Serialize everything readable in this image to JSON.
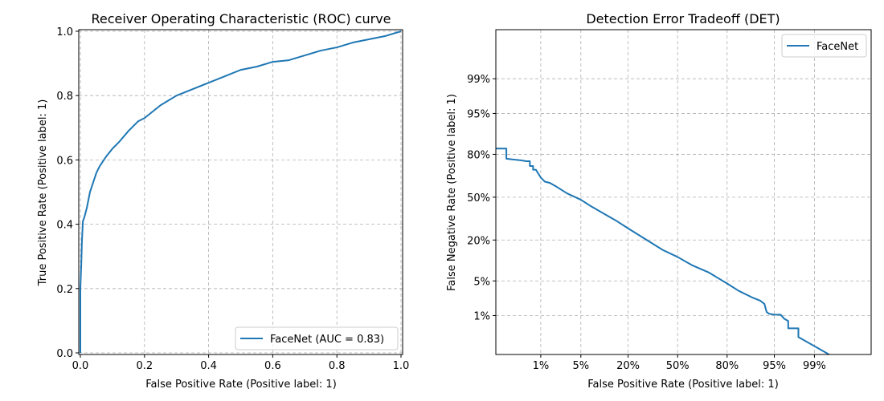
{
  "chart_data": [
    {
      "type": "line",
      "title": "Receiver Operating Characteristic (ROC) curve",
      "xlabel": "False Positive Rate (Positive label: 1)",
      "ylabel": "True Positive Rate (Positive label: 1)",
      "xlim": [
        -0.005,
        1.005
      ],
      "ylim": [
        -0.005,
        1.005
      ],
      "xticks": [
        0.0,
        0.2,
        0.4,
        0.6,
        0.8,
        1.0
      ],
      "xtick_labels": [
        "0.0",
        "0.2",
        "0.4",
        "0.6",
        "0.8",
        "1.0"
      ],
      "yticks": [
        0.0,
        0.2,
        0.4,
        0.6,
        0.8,
        1.0
      ],
      "ytick_labels": [
        "0.0",
        "0.2",
        "0.4",
        "0.6",
        "0.8",
        "1.0"
      ],
      "grid": true,
      "legend_position": "lower-right",
      "series": [
        {
          "name": "FaceNet (AUC = 0.83)",
          "color": "#1f77b4",
          "x": [
            0.0,
            0.0,
            0.003,
            0.005,
            0.008,
            0.012,
            0.02,
            0.03,
            0.04,
            0.05,
            0.06,
            0.08,
            0.1,
            0.12,
            0.15,
            0.18,
            0.2,
            0.25,
            0.3,
            0.35,
            0.4,
            0.45,
            0.5,
            0.55,
            0.6,
            0.65,
            0.7,
            0.75,
            0.8,
            0.85,
            0.9,
            0.95,
            1.0
          ],
          "y": [
            0.0,
            0.2,
            0.28,
            0.35,
            0.41,
            0.42,
            0.45,
            0.5,
            0.53,
            0.56,
            0.58,
            0.61,
            0.635,
            0.655,
            0.69,
            0.72,
            0.73,
            0.77,
            0.8,
            0.82,
            0.84,
            0.86,
            0.88,
            0.89,
            0.905,
            0.91,
            0.925,
            0.94,
            0.95,
            0.965,
            0.975,
            0.985,
            1.0
          ]
        }
      ]
    },
    {
      "type": "line",
      "title": "Detection Error Tradeoff (DET)",
      "xlabel": "False Positive Rate (Positive label: 1)",
      "ylabel": "False Negative Rate (Positive label: 1)",
      "scale": "normal-deviate",
      "xlim": [
        0.001,
        0.9995
      ],
      "ylim": [
        0.001,
        0.9995
      ],
      "xticks": [
        0.01,
        0.05,
        0.2,
        0.5,
        0.8,
        0.95,
        0.99
      ],
      "xtick_labels": [
        "1%",
        "5%",
        "20%",
        "50%",
        "80%",
        "95%",
        "99%"
      ],
      "yticks": [
        0.01,
        0.05,
        0.2,
        0.5,
        0.8,
        0.95,
        0.99
      ],
      "ytick_labels": [
        "1%",
        "5%",
        "20%",
        "50%",
        "80%",
        "95%",
        "99%"
      ],
      "grid": true,
      "legend_position": "top-right",
      "series": [
        {
          "name": "FaceNet",
          "color": "#1f77b4",
          "x": [
            0.001,
            0.0018,
            0.0018,
            0.004,
            0.005,
            0.006,
            0.006,
            0.007,
            0.007,
            0.008,
            0.01,
            0.012,
            0.015,
            0.02,
            0.03,
            0.05,
            0.07,
            0.1,
            0.15,
            0.2,
            0.3,
            0.4,
            0.5,
            0.6,
            0.7,
            0.8,
            0.85,
            0.9,
            0.92,
            0.93,
            0.935,
            0.94,
            0.95,
            0.96,
            0.965,
            0.97,
            0.97,
            0.98,
            0.98,
            0.995
          ],
          "y": [
            0.83,
            0.83,
            0.775,
            0.765,
            0.76,
            0.76,
            0.73,
            0.73,
            0.705,
            0.705,
            0.65,
            0.62,
            0.61,
            0.58,
            0.53,
            0.48,
            0.43,
            0.38,
            0.32,
            0.27,
            0.2,
            0.15,
            0.12,
            0.09,
            0.07,
            0.045,
            0.033,
            0.024,
            0.021,
            0.018,
            0.012,
            0.011,
            0.0105,
            0.0105,
            0.0085,
            0.0075,
            0.005,
            0.005,
            0.003,
            0.001
          ]
        }
      ]
    }
  ]
}
